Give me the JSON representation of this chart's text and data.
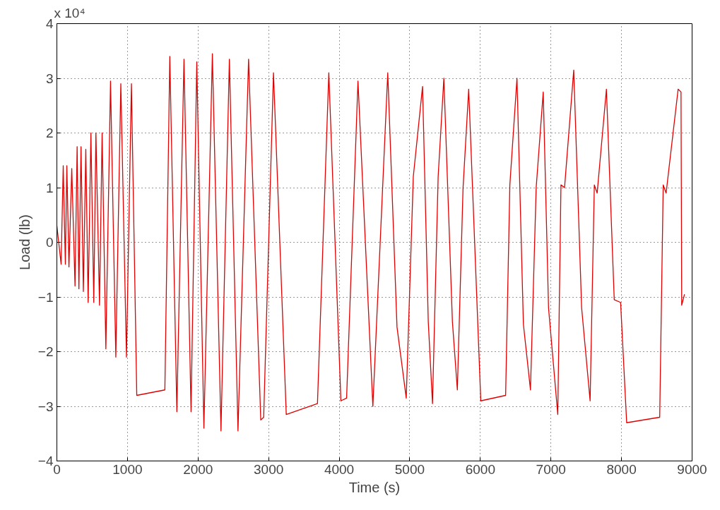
{
  "chart_data": {
    "type": "line",
    "xlabel": "Time (s)",
    "ylabel": "Load (lb)",
    "annotations": [
      "x 10⁴"
    ],
    "xlim": [
      0,
      9000
    ],
    "xticks": [
      0,
      1000,
      2000,
      3000,
      4000,
      5000,
      6000,
      7000,
      8000,
      9000
    ],
    "ylim": [
      -4,
      4
    ],
    "yticks": [
      -4,
      -3,
      -2,
      -1,
      0,
      1,
      2,
      3,
      4
    ],
    "grid": true,
    "marker": "none",
    "line_style": "solid",
    "series": [
      {
        "color": "#e00000",
        "x": [
          0,
          60,
          90,
          120,
          141,
          171,
          211,
          257,
          287,
          312,
          342,
          375,
          410,
          443,
          482,
          523,
          553,
          604,
          641,
          694,
          760,
          835,
          906,
          986,
          1056,
          1132,
          1530,
          1600,
          1700,
          1801,
          1901,
          1982,
          2083,
          2203,
          2325,
          2444,
          2566,
          2716,
          2889,
          2930,
          3069,
          3250,
          3692,
          3853,
          4024,
          4105,
          4266,
          4477,
          4688,
          4819,
          4950,
          5050,
          5181,
          5262,
          5322,
          5402,
          5483,
          5604,
          5674,
          5755,
          5835,
          6006,
          6358,
          6418,
          6519,
          6610,
          6710,
          6791,
          6891,
          6966,
          7097,
          7142,
          7193,
          7323,
          7435,
          7555,
          7615,
          7655,
          7786,
          7897,
          7987,
          8073,
          8541,
          8591,
          8632,
          8802,
          8843,
          8853,
          8893
        ],
        "values": [
          0.3,
          -0.4,
          1.4,
          -0.4,
          1.4,
          -0.45,
          1.35,
          -0.8,
          1.75,
          -0.85,
          1.75,
          -0.9,
          1.7,
          -1.1,
          2.0,
          -1.1,
          2.0,
          -1.15,
          2.0,
          -1.95,
          2.95,
          -2.1,
          2.9,
          -2.1,
          2.9,
          -2.8,
          -2.7,
          3.4,
          -3.1,
          3.35,
          -3.1,
          3.3,
          -3.4,
          3.45,
          -3.45,
          3.35,
          -3.45,
          3.35,
          -3.25,
          -3.2,
          3.1,
          -3.15,
          -2.95,
          3.1,
          -2.9,
          -2.85,
          2.95,
          -3.0,
          3.1,
          -1.55,
          -2.85,
          1.2,
          2.85,
          -1.45,
          -2.95,
          1.2,
          3.0,
          -1.45,
          -2.7,
          1.0,
          2.8,
          -2.9,
          -2.8,
          1.05,
          3.0,
          -1.5,
          -2.7,
          1.0,
          2.75,
          -1.2,
          -3.15,
          1.05,
          1.0,
          3.15,
          -1.2,
          -2.9,
          1.05,
          0.9,
          2.8,
          -1.05,
          -1.1,
          -3.3,
          -3.2,
          1.05,
          0.9,
          2.8,
          2.75,
          -1.15,
          -0.95
        ]
      }
    ]
  }
}
